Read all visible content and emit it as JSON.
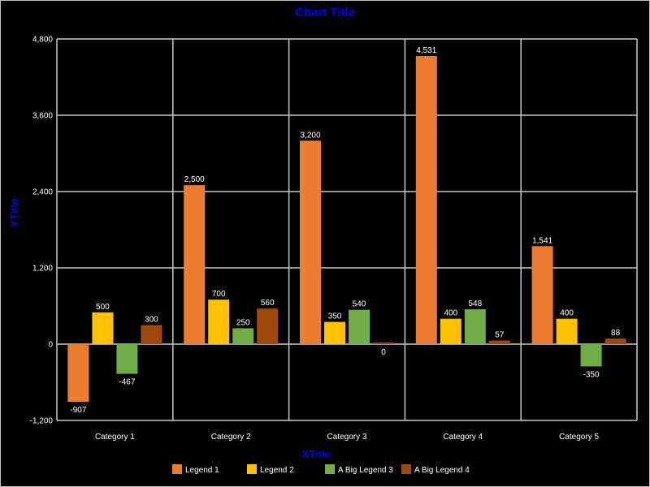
{
  "colors": {
    "background": "#000000",
    "grid": "#c8c8c8",
    "text": "#ffffff",
    "title": "#0000ff"
  },
  "chart_data": {
    "type": "bar",
    "title": "Chart Title",
    "xlabel": "XTitle",
    "ylabel": "YTitle",
    "ylim": [
      -1200,
      4800
    ],
    "yticks": [
      -1200,
      0,
      1200,
      2400,
      3600,
      4800
    ],
    "ytick_labels": [
      "-1,200",
      "0",
      "1,200",
      "2,400",
      "3,600",
      "4,800"
    ],
    "grid": true,
    "legend_position": "bottom",
    "categories": [
      "Category 1",
      "Category 2",
      "Category 3",
      "Category 4",
      "Category 5"
    ],
    "series": [
      {
        "name": "Legend 1",
        "color": "#ed7d31",
        "values": [
          -907,
          2500,
          3200,
          4531,
          1541
        ],
        "labels": [
          "-907",
          "2,500",
          "3,200",
          "4,531",
          "1,541"
        ]
      },
      {
        "name": "Legend 2",
        "color": "#ffc000",
        "values": [
          500,
          700,
          350,
          400,
          400
        ],
        "labels": [
          "500",
          "700",
          "350",
          "400",
          "400"
        ]
      },
      {
        "name": "A Big Legend 3",
        "color": "#70ad47",
        "values": [
          -467,
          250,
          540,
          548,
          -350
        ],
        "labels": [
          "-467",
          "250",
          "540",
          "548",
          "-350"
        ]
      },
      {
        "name": "A Big Legend 4",
        "color": "#9e480e",
        "values": [
          300,
          560,
          0,
          57,
          88
        ],
        "labels": [
          "300",
          "560",
          "0",
          "57",
          "88"
        ]
      }
    ]
  }
}
